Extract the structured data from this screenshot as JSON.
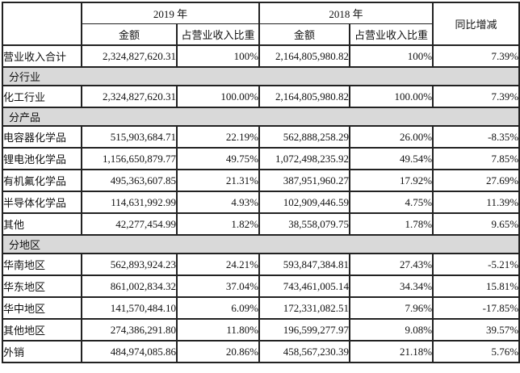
{
  "colors": {
    "section_bg": "#d9d9d9",
    "highlight_bg": "#d9d9d9",
    "corner_bg": "#e4e4e4",
    "border": "#222222",
    "text": "#111111"
  },
  "table": {
    "header": {
      "corner": "",
      "year_2019": "2019 年",
      "year_2018": "2018 年",
      "amount": "金额",
      "ratio": "占营业收入比重",
      "yoy": "同比增减"
    },
    "rows": [
      {
        "type": "data",
        "highlight": true,
        "label": "营业收入合计",
        "amount_2019": "2,324,827,620.31",
        "ratio_2019": "100%",
        "amount_2018": "2,164,805,980.82",
        "ratio_2018": "100%",
        "yoy": "7.39%"
      },
      {
        "type": "section",
        "label": "分行业"
      },
      {
        "type": "data",
        "highlight": false,
        "label": "化工行业",
        "amount_2019": "2,324,827,620.31",
        "ratio_2019": "100.00%",
        "amount_2018": "2,164,805,980.82",
        "ratio_2018": "100.00%",
        "yoy": "7.39%"
      },
      {
        "type": "section",
        "label": "分产品"
      },
      {
        "type": "data",
        "highlight": false,
        "label": "电容器化学品",
        "amount_2019": "515,903,684.71",
        "ratio_2019": "22.19%",
        "amount_2018": "562,888,258.29",
        "ratio_2018": "26.00%",
        "yoy": "-8.35%"
      },
      {
        "type": "data",
        "highlight": false,
        "label": "锂电池化学品",
        "amount_2019": "1,156,650,879.77",
        "ratio_2019": "49.75%",
        "amount_2018": "1,072,498,235.92",
        "ratio_2018": "49.54%",
        "yoy": "7.85%"
      },
      {
        "type": "data",
        "highlight": false,
        "label": "有机氟化学品",
        "amount_2019": "495,363,607.85",
        "ratio_2019": "21.31%",
        "amount_2018": "387,951,960.27",
        "ratio_2018": "17.92%",
        "yoy": "27.69%"
      },
      {
        "type": "data",
        "highlight": false,
        "label": "半导体化学品",
        "amount_2019": "114,631,992.99",
        "ratio_2019": "4.93%",
        "amount_2018": "102,909,446.59",
        "ratio_2018": "4.75%",
        "yoy": "11.39%"
      },
      {
        "type": "data",
        "highlight": false,
        "label": "其他",
        "amount_2019": "42,277,454.99",
        "ratio_2019": "1.82%",
        "amount_2018": "38,558,079.75",
        "ratio_2018": "1.78%",
        "yoy": "9.65%"
      },
      {
        "type": "section",
        "label": "分地区"
      },
      {
        "type": "data",
        "highlight": false,
        "label": "华南地区",
        "amount_2019": "562,893,924.23",
        "ratio_2019": "24.21%",
        "amount_2018": "593,847,384.81",
        "ratio_2018": "27.43%",
        "yoy": "-5.21%"
      },
      {
        "type": "data",
        "highlight": false,
        "label": "华东地区",
        "amount_2019": "861,002,834.32",
        "ratio_2019": "37.04%",
        "amount_2018": "743,461,005.14",
        "ratio_2018": "34.34%",
        "yoy": "15.81%"
      },
      {
        "type": "data",
        "highlight": false,
        "label": "华中地区",
        "amount_2019": "141,570,484.10",
        "ratio_2019": "6.09%",
        "amount_2018": "172,331,082.51",
        "ratio_2018": "7.96%",
        "yoy": "-17.85%"
      },
      {
        "type": "data",
        "highlight": false,
        "label": "其他地区",
        "amount_2019": "274,386,291.80",
        "ratio_2019": "11.80%",
        "amount_2018": "196,599,277.97",
        "ratio_2018": "9.08%",
        "yoy": "39.57%"
      },
      {
        "type": "data",
        "highlight": false,
        "label": "外销",
        "amount_2019": "484,974,085.86",
        "ratio_2019": "20.86%",
        "amount_2018": "458,567,230.39",
        "ratio_2018": "21.18%",
        "yoy": "5.76%"
      }
    ]
  }
}
